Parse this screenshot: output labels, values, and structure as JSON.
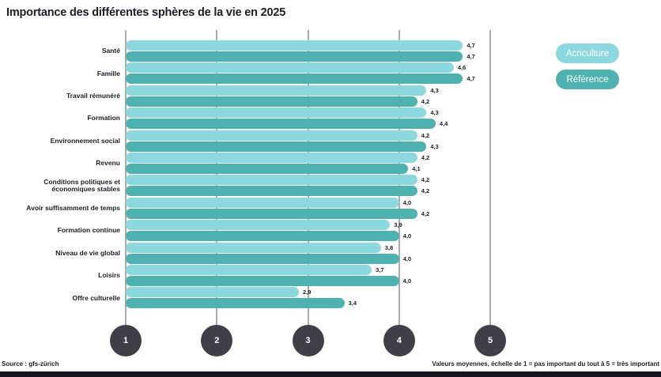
{
  "title": "Importance des différentes sphères de la vie en 2025",
  "legend": {
    "items": [
      {
        "label": "Acriculture",
        "color": "#8bd9df"
      },
      {
        "label": "Référence",
        "color": "#4db2b0"
      }
    ]
  },
  "chart_data": {
    "type": "bar",
    "orientation": "horizontal",
    "title": "Importance des différentes sphères de la vie en 2025",
    "xlim": [
      1,
      5
    ],
    "x_ticks": [
      "1",
      "2",
      "3",
      "4",
      "5"
    ],
    "grid": true,
    "legend_position": "top-right",
    "categories": [
      "Santé",
      "Famille",
      "Travail rémunéré",
      "Formation",
      "Environnement social",
      "Revenu",
      "Conditions politiques et économiques stables",
      "Avoir suffisamment de temps",
      "Formation continue",
      "Niveau de vie global",
      "Loisirs",
      "Offre culturelle"
    ],
    "series": [
      {
        "name": "Acriculture",
        "color": "#8bd9df",
        "values": [
          4.7,
          4.6,
          4.3,
          4.3,
          4.2,
          4.2,
          4.2,
          4.0,
          3.9,
          3.8,
          3.7,
          2.9
        ],
        "labels": [
          "4,7",
          "4,6",
          "4,3",
          "4,3",
          "4,2",
          "4,2",
          "4,2",
          "4,0",
          "3,9",
          "3,8",
          "3,7",
          "2,9"
        ]
      },
      {
        "name": "Référence",
        "color": "#4db2b0",
        "values": [
          4.7,
          4.7,
          4.2,
          4.4,
          4.3,
          4.1,
          4.2,
          4.2,
          4.0,
          4.0,
          4.0,
          3.4
        ],
        "labels": [
          "4,7",
          "4,7",
          "4,2",
          "4,4",
          "4,3",
          "4,1",
          "4,2",
          "4,2",
          "4,0",
          "4,0",
          "4,0",
          "3,4"
        ]
      }
    ]
  },
  "footer": {
    "source": "Source : gfs-zürich",
    "note": "Valeurs moyennes, échelle de 1 = pas important du tout à 5 = très important"
  }
}
